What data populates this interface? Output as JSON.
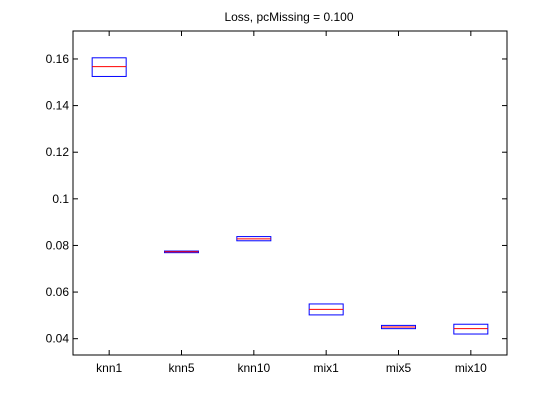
{
  "chart_data": {
    "type": "box",
    "title": "Loss, pcMissing = 0.100",
    "xlabel": "",
    "ylabel": "",
    "categories": [
      "knn1",
      "knn5",
      "knn10",
      "mix1",
      "mix5",
      "mix10"
    ],
    "ylim": [
      0.033,
      0.172
    ],
    "yticks": [
      0.04,
      0.06,
      0.08,
      0.1,
      0.12,
      0.14,
      0.16
    ],
    "ytick_labels": [
      "0.04",
      "0.06",
      "0.08",
      "0.1",
      "0.12",
      "0.14",
      "0.16"
    ],
    "boxes": [
      {
        "category": "knn1",
        "q1": 0.1525,
        "median": 0.1567,
        "q3": 0.1605
      },
      {
        "category": "knn5",
        "q1": 0.0769,
        "median": 0.0773,
        "q3": 0.0776
      },
      {
        "category": "knn10",
        "q1": 0.082,
        "median": 0.0828,
        "q3": 0.0838
      },
      {
        "category": "mix1",
        "q1": 0.0502,
        "median": 0.0526,
        "q3": 0.0549
      },
      {
        "category": "mix5",
        "q1": 0.0443,
        "median": 0.045,
        "q3": 0.0457
      },
      {
        "category": "mix10",
        "q1": 0.042,
        "median": 0.0443,
        "q3": 0.0462
      }
    ],
    "colors": {
      "box": "#0000ff",
      "median": "#ff0000",
      "axes": "#000000"
    },
    "grid": false,
    "legend": "none"
  }
}
